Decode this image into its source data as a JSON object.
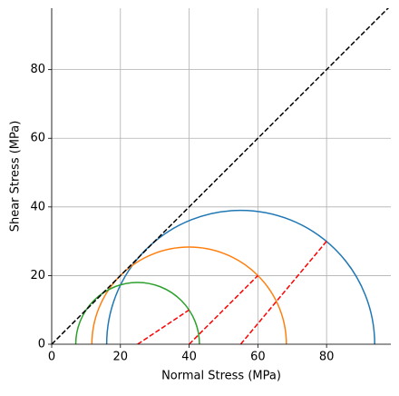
{
  "chart_data": {
    "type": "mohr",
    "x_label": "Normal Stress (MPa)",
    "y_label": "Shear Stress (MPa)",
    "xlim": [
      0,
      98.7
    ],
    "ylim": [
      0,
      97.9
    ],
    "xticks": [
      0,
      20,
      40,
      60,
      80
    ],
    "yticks": [
      0,
      20,
      40,
      60,
      80
    ],
    "grid": true,
    "circles": [
      {
        "color": "#1f77b4",
        "center": 55,
        "radius": 39
      },
      {
        "color": "#ff7f0e",
        "center": 40,
        "radius": 28.3
      },
      {
        "color": "#2ca02c",
        "center": 25,
        "radius": 18
      }
    ],
    "lines": [
      {
        "color": "#000000",
        "x": [
          0,
          100
        ],
        "y": [
          0,
          100
        ]
      },
      {
        "color": "#ff0000",
        "x": [
          55,
          80
        ],
        "y": [
          0,
          30
        ]
      },
      {
        "color": "#ff0000",
        "x": [
          40,
          60
        ],
        "y": [
          0,
          20
        ]
      },
      {
        "color": "#ff0000",
        "x": [
          25,
          40
        ],
        "y": [
          0,
          10
        ]
      }
    ]
  }
}
